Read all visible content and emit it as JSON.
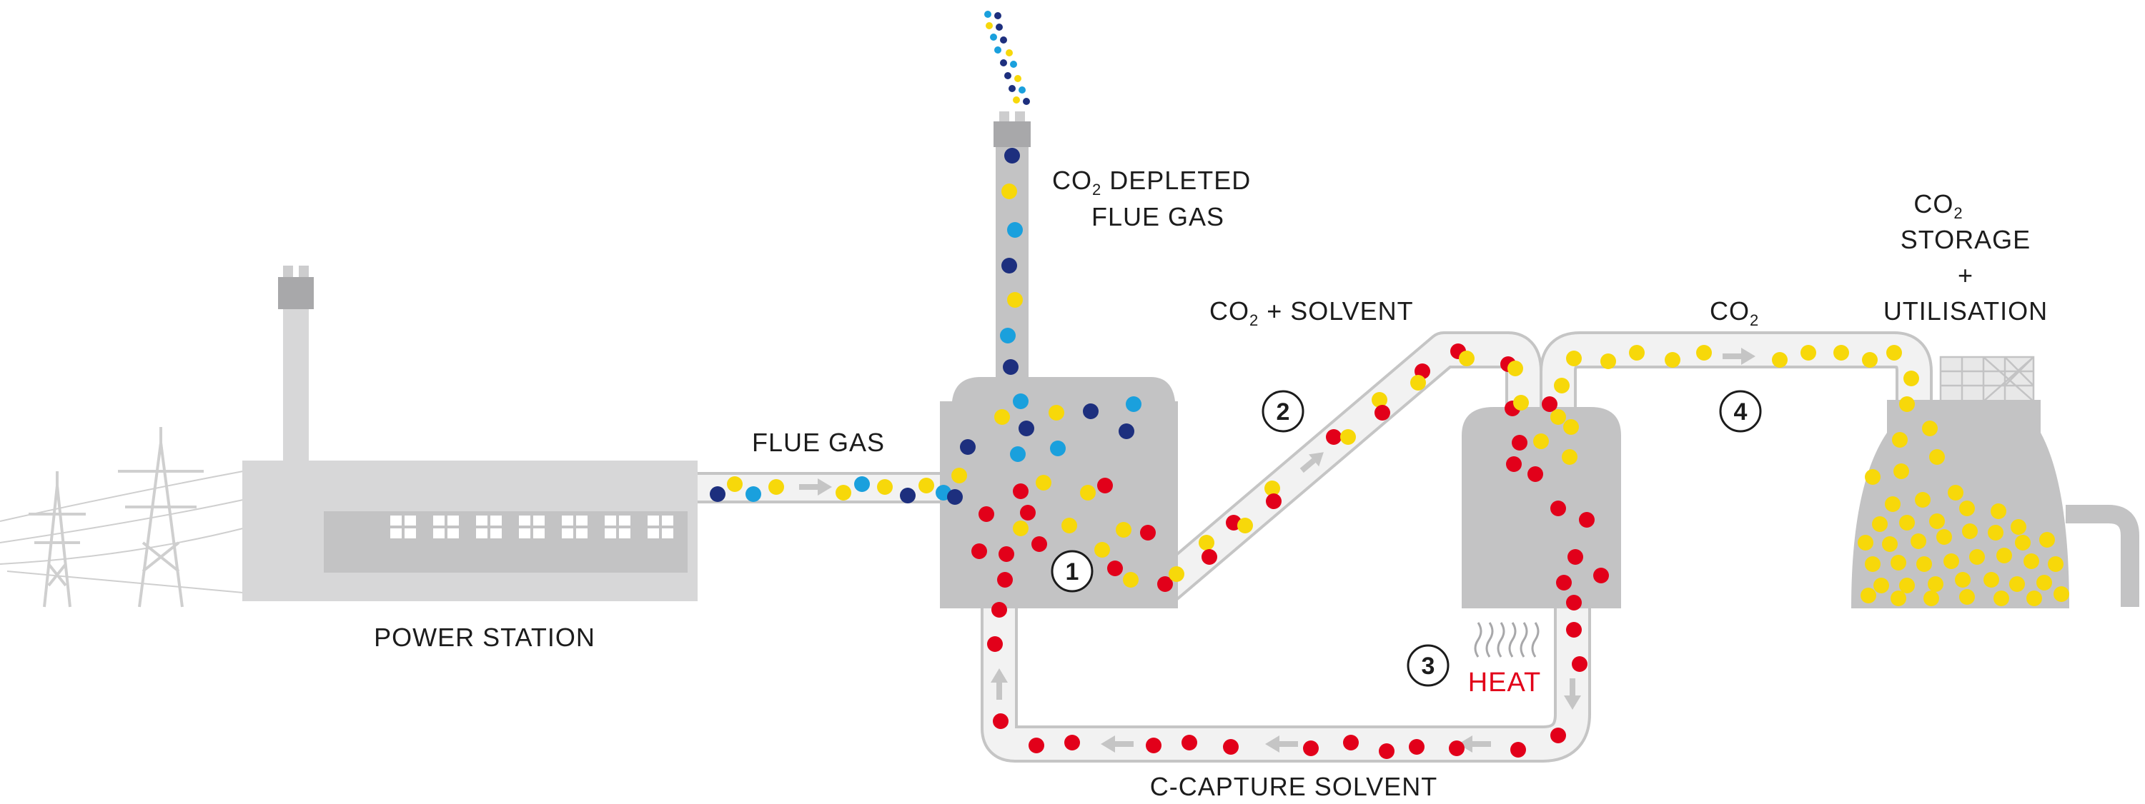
{
  "labels": {
    "power_station": "POWER STATION",
    "flue_gas": "FLUE GAS",
    "co2_depleted_line1_prefix": "CO",
    "co2_depleted_line1_sub": "2",
    "co2_depleted_line1_suffix": " DEPLETED",
    "co2_depleted_line2": "FLUE GAS",
    "co2_solvent_prefix": "CO",
    "co2_solvent_sub": "2",
    "co2_solvent_suffix": " + SOLVENT",
    "co2_prefix": "CO",
    "co2_sub": "2",
    "storage_prefix": "CO",
    "storage_sub": "2",
    "storage_line2": "STORAGE",
    "storage_line3": "+",
    "storage_line4": "UTILISATION",
    "heat": "HEAT",
    "c_capture_solvent": "C-CAPTURE SOLVENT"
  },
  "steps": [
    "1",
    "2",
    "3",
    "4"
  ],
  "colors": {
    "building": "#d7d7d8",
    "vessel": "#c3c3c4",
    "pipe_fill": "#f2f2f2",
    "pipe_stroke": "#c5c5c5",
    "co2": "#f7d80a",
    "solvent": "#e2001a",
    "nitrogen": "#1d2f7e",
    "oxygen": "#1aa0dd"
  },
  "icons": [
    "pylon-icon",
    "heat-waves-icon",
    "flow-arrow-icon"
  ]
}
